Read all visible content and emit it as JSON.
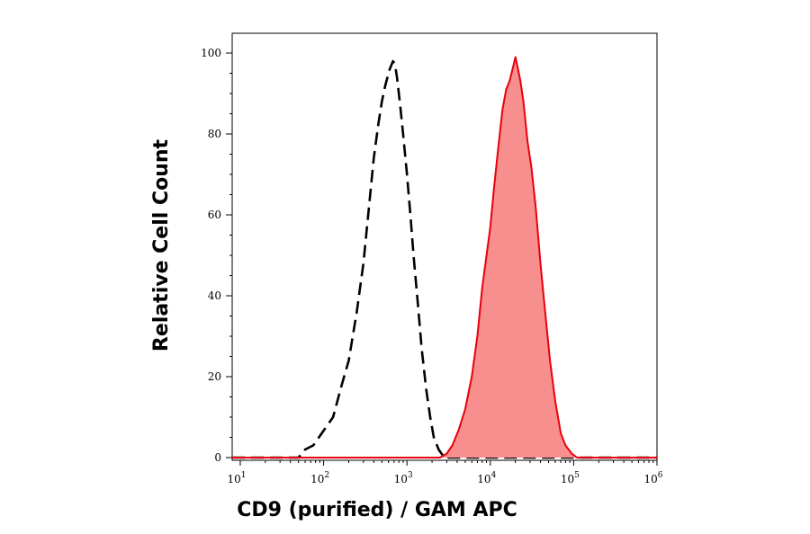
{
  "chart_data": {
    "type": "area",
    "xlabel": "CD9 (purified) / GAM APC",
    "ylabel": "Relative Cell Count",
    "x_scale": "log",
    "xlim": [
      8,
      1000000
    ],
    "ylim": [
      0,
      100
    ],
    "x_ticks": [
      {
        "base": "10",
        "exp": "1",
        "value": 10
      },
      {
        "base": "10",
        "exp": "2",
        "value": 100
      },
      {
        "base": "10",
        "exp": "3",
        "value": 1000
      },
      {
        "base": "10",
        "exp": "4",
        "value": 10000
      },
      {
        "base": "10",
        "exp": "5",
        "value": 100000
      },
      {
        "base": "10",
        "exp": "6",
        "value": 1000000
      }
    ],
    "y_ticks": [
      "0",
      "20",
      "40",
      "60",
      "80",
      "100"
    ],
    "grid": false,
    "legend": "none",
    "series": [
      {
        "style": "dashed",
        "color": "#000000",
        "fill": "none",
        "points": [
          [
            8,
            0
          ],
          [
            50,
            0
          ],
          [
            60,
            2
          ],
          [
            75,
            3
          ],
          [
            95,
            6
          ],
          [
            130,
            10
          ],
          [
            160,
            17
          ],
          [
            200,
            24
          ],
          [
            250,
            36
          ],
          [
            300,
            48
          ],
          [
            350,
            62
          ],
          [
            400,
            74
          ],
          [
            450,
            82
          ],
          [
            500,
            88
          ],
          [
            550,
            92
          ],
          [
            620,
            96
          ],
          [
            680,
            98
          ],
          [
            720,
            97
          ],
          [
            760,
            94
          ],
          [
            820,
            88
          ],
          [
            900,
            80
          ],
          [
            1000,
            70
          ],
          [
            1100,
            60
          ],
          [
            1200,
            50
          ],
          [
            1350,
            38
          ],
          [
            1500,
            27
          ],
          [
            1700,
            17
          ],
          [
            1900,
            10
          ],
          [
            2100,
            5
          ],
          [
            2400,
            2
          ],
          [
            2800,
            0
          ],
          [
            1000000,
            0
          ]
        ]
      },
      {
        "style": "solid",
        "color": "#e8000b",
        "fill": "#f88f8f",
        "points": [
          [
            8,
            0
          ],
          [
            2500,
            0
          ],
          [
            3000,
            1
          ],
          [
            3500,
            3
          ],
          [
            4200,
            7
          ],
          [
            5000,
            12
          ],
          [
            6000,
            20
          ],
          [
            7000,
            30
          ],
          [
            8000,
            42
          ],
          [
            9000,
            50
          ],
          [
            10000,
            57
          ],
          [
            11000,
            66
          ],
          [
            12500,
            77
          ],
          [
            14000,
            86
          ],
          [
            15500,
            91
          ],
          [
            17000,
            93
          ],
          [
            19000,
            97
          ],
          [
            20000,
            99
          ],
          [
            21500,
            96
          ],
          [
            23000,
            93
          ],
          [
            25000,
            88
          ],
          [
            28000,
            78
          ],
          [
            31000,
            72
          ],
          [
            35000,
            62
          ],
          [
            40000,
            48
          ],
          [
            45000,
            37
          ],
          [
            52000,
            24
          ],
          [
            60000,
            14
          ],
          [
            70000,
            6
          ],
          [
            80000,
            3
          ],
          [
            95000,
            1
          ],
          [
            110000,
            0
          ],
          [
            1000000,
            0
          ]
        ]
      }
    ]
  }
}
